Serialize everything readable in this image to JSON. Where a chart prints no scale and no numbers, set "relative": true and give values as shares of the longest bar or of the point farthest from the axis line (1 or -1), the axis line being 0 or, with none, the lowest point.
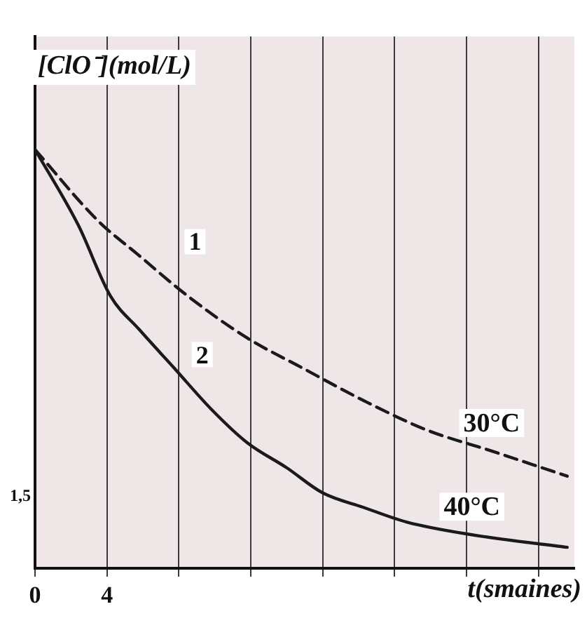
{
  "chart_data": {
    "type": "line",
    "relative": true,
    "ylabel": "[ClO⁻](mol/L)",
    "xlabel": "t(smaines)",
    "xlim": [
      0,
      30
    ],
    "xticks": [
      0,
      4,
      {
        "value": 8,
        "label": null
      },
      {
        "value": 12,
        "label": null
      },
      {
        "value": 16,
        "label": null
      },
      {
        "value": 20,
        "label": null
      },
      {
        "value": 24,
        "label": null
      },
      {
        "value": 28,
        "label": null
      }
    ],
    "grid": "x",
    "legend": false,
    "marker": "none",
    "series": [
      {
        "name": "30°C",
        "color": "#1a1a1a",
        "line_style": "dashed",
        "x": [
          0,
          3.5,
          5.7,
          8.5,
          11.8,
          14.8,
          18.3,
          21.8,
          25.4,
          29.6
        ],
        "values": [
          1,
          0.83,
          0.75,
          0.65,
          0.55,
          0.48,
          0.4,
          0.33,
          0.28,
          0.22
        ]
      },
      {
        "name": "40°C",
        "color": "#1a1a1a",
        "line_style": "solid",
        "x": [
          0,
          2.4,
          4.2,
          5.8,
          7.7,
          9.8,
          11.8,
          14,
          16,
          18.3,
          20.7,
          24.3,
          29.6
        ],
        "values": [
          1,
          0.82,
          0.65,
          0.57,
          0.48,
          0.38,
          0.3,
          0.24,
          0.18,
          0.145,
          0.11,
          0.08,
          0.05
        ]
      }
    ],
    "annotations": [
      "1,5",
      {
        "text": "1",
        "x": 8.9,
        "y": 0.78
      },
      {
        "text": "2",
        "x": 9.3,
        "y": 0.51
      }
    ]
  }
}
